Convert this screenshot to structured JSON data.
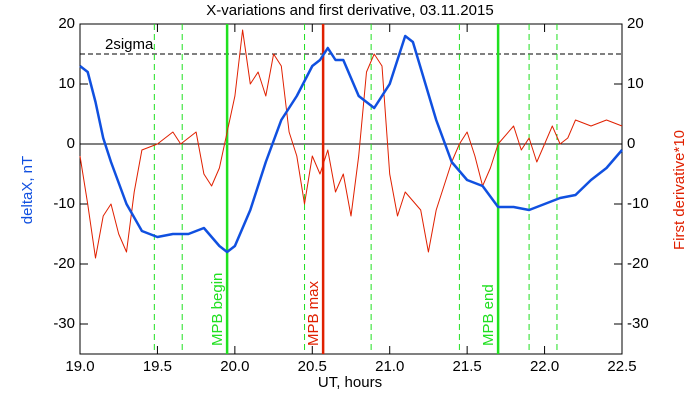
{
  "chart_data": {
    "type": "line",
    "title": "X-variations and first derivative, 03.11.2015",
    "xlabel": "UT, hours",
    "ylabel": "deltaX, nT",
    "y2label": "First derivative*10",
    "ylabel_color": "#1050e0",
    "y2label_color": "#e02000",
    "xlim": [
      19,
      22.5
    ],
    "ylim": [
      -35,
      20
    ],
    "y2lim": [
      -35,
      20
    ],
    "xticks": [
      {
        "value": 19,
        "label": "19.0"
      },
      19.5,
      {
        "value": 20,
        "label": "20.0"
      },
      20.5,
      {
        "value": 21,
        "label": "21.0"
      },
      21.5,
      {
        "value": 22,
        "label": "22.0"
      },
      22.5
    ],
    "yticks": [
      -30,
      -20,
      -10,
      0,
      10,
      20
    ],
    "y2ticks": [
      -30,
      -20,
      -10,
      0,
      10,
      20
    ],
    "series": [
      {
        "color": "#1050e0",
        "width": 2.5,
        "axis": "y",
        "x": [
          19.0,
          19.05,
          19.1,
          19.15,
          19.2,
          19.3,
          19.4,
          19.5,
          19.6,
          19.7,
          19.8,
          19.9,
          19.95,
          20.0,
          20.1,
          20.2,
          20.3,
          20.4,
          20.5,
          20.55,
          20.6,
          20.65,
          20.7,
          20.8,
          20.9,
          21.0,
          21.1,
          21.15,
          21.3,
          21.4,
          21.5,
          21.6,
          21.7,
          21.8,
          21.9,
          22.0,
          22.1,
          22.2,
          22.3,
          22.4,
          22.5
        ],
        "values": [
          13,
          12,
          7,
          1,
          -3,
          -10,
          -14.5,
          -15.5,
          -15,
          -15,
          -14,
          -17,
          -18,
          -17,
          -11,
          -3,
          4,
          8,
          13,
          14,
          16,
          14,
          14,
          8,
          6,
          10,
          18,
          17,
          4,
          -3,
          -6,
          -7,
          -10.5,
          -10.5,
          -11,
          -10,
          -9,
          -8.5,
          -6,
          -4,
          -1
        ]
      },
      {
        "color": "#e02000",
        "width": 1,
        "axis": "y2",
        "x": [
          19.0,
          19.05,
          19.1,
          19.15,
          19.2,
          19.25,
          19.3,
          19.35,
          19.4,
          19.5,
          19.6,
          19.65,
          19.7,
          19.75,
          19.8,
          19.85,
          19.9,
          20.0,
          20.05,
          20.1,
          20.15,
          20.2,
          20.25,
          20.3,
          20.35,
          20.4,
          20.45,
          20.5,
          20.55,
          20.6,
          20.65,
          20.7,
          20.75,
          20.8,
          20.85,
          20.9,
          20.95,
          21.0,
          21.05,
          21.1,
          21.2,
          21.25,
          21.3,
          21.4,
          21.45,
          21.5,
          21.55,
          21.6,
          21.65,
          21.7,
          21.8,
          21.85,
          21.9,
          21.95,
          22.0,
          22.05,
          22.1,
          22.15,
          22.2,
          22.3,
          22.4,
          22.5
        ],
        "values": [
          -2,
          -10,
          -19,
          -12,
          -10,
          -15,
          -18,
          -8,
          -1,
          0,
          2,
          0,
          1,
          2,
          -5,
          -7,
          -4,
          8,
          19,
          10,
          12,
          8,
          15,
          13,
          2,
          -2,
          -10,
          -2,
          -5,
          -1,
          -8,
          -5,
          -12,
          -2,
          12,
          15,
          13,
          -5,
          -12,
          -8,
          -11,
          -18,
          -11,
          -3,
          0,
          2,
          -2,
          -7,
          -4,
          0,
          3,
          -1,
          1,
          -3,
          0,
          3,
          0,
          1,
          4,
          3,
          4,
          3
        ]
      }
    ],
    "hlines": [
      {
        "value": 15,
        "label": "2sigma",
        "dashed": true
      },
      {
        "value": 0,
        "dashed": false
      }
    ],
    "vlines": [
      {
        "x": 19.48,
        "color": "#20e020",
        "dashed": true
      },
      {
        "x": 19.66,
        "color": "#20e020",
        "dashed": true
      },
      {
        "x": 19.95,
        "color": "#20e020",
        "dashed": false,
        "label": "MPB begin"
      },
      {
        "x": 20.45,
        "color": "#20e020",
        "dashed": true
      },
      {
        "x": 20.57,
        "color": "#e02000",
        "dashed": false,
        "label": "MPB max"
      },
      {
        "x": 20.88,
        "color": "#20e020",
        "dashed": true
      },
      {
        "x": 21.45,
        "color": "#20e020",
        "dashed": true
      },
      {
        "x": 21.7,
        "color": "#20e020",
        "dashed": false,
        "label": "MPB end"
      },
      {
        "x": 21.9,
        "color": "#20e020",
        "dashed": true
      },
      {
        "x": 22.08,
        "color": "#20e020",
        "dashed": true
      }
    ]
  }
}
